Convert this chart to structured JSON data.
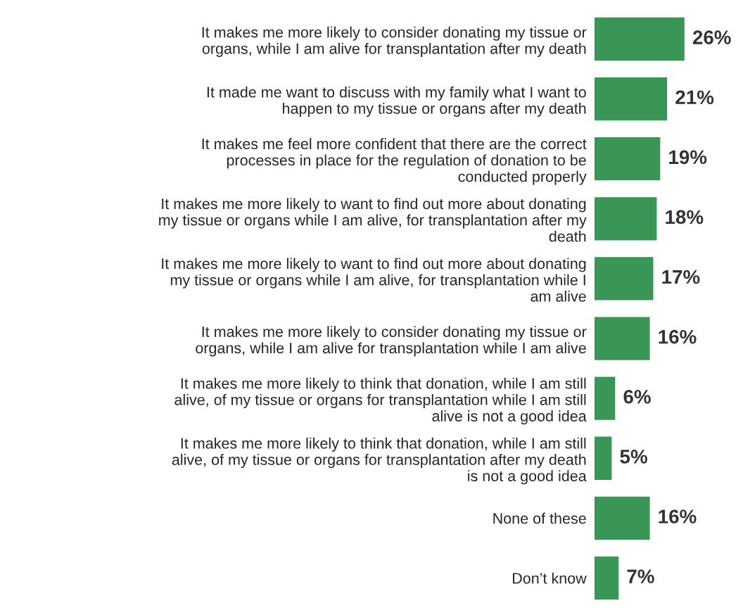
{
  "chart_data": {
    "type": "bar",
    "orientation": "horizontal",
    "categories": [
      "It makes me more likely to consider donating my tissue or\norgans, while I am alive for transplantation after my death",
      "It made me want to discuss with my family what I want to\nhappen to my tissue or organs after my death",
      "It makes me feel more confident that there are the correct\nprocesses in place for the regulation of donation to be\nconducted properly",
      "It makes me more likely to want to find out more about donating\nmy tissue or organs while I am alive, for transplantation after my\ndeath",
      "It makes me more likely to want to find out more about donating\nmy tissue or organs while I am alive, for transplantation while I\nam alive",
      "It makes me more likely to consider donating my tissue or\norgans, while I am alive for transplantation while I am alive",
      "It makes me more likely to think that donation, while I am still\nalive, of my tissue or organs for transplantation while I am still\nalive is not a good idea",
      "It makes me more likely to think that donation, while I am still\nalive, of my tissue or organs for transplantation after my death\nis not a good idea",
      "None of these",
      "Don’t know"
    ],
    "values": [
      26,
      21,
      19,
      18,
      17,
      16,
      6,
      5,
      16,
      7
    ],
    "color": "#3a9657",
    "value_labels": [
      "26%",
      "21%",
      "19%",
      "18%",
      "17%",
      "16%",
      "6%",
      "5%",
      "16%",
      "7%"
    ],
    "tick_labels": "y",
    "grid": false,
    "legend": false
  }
}
